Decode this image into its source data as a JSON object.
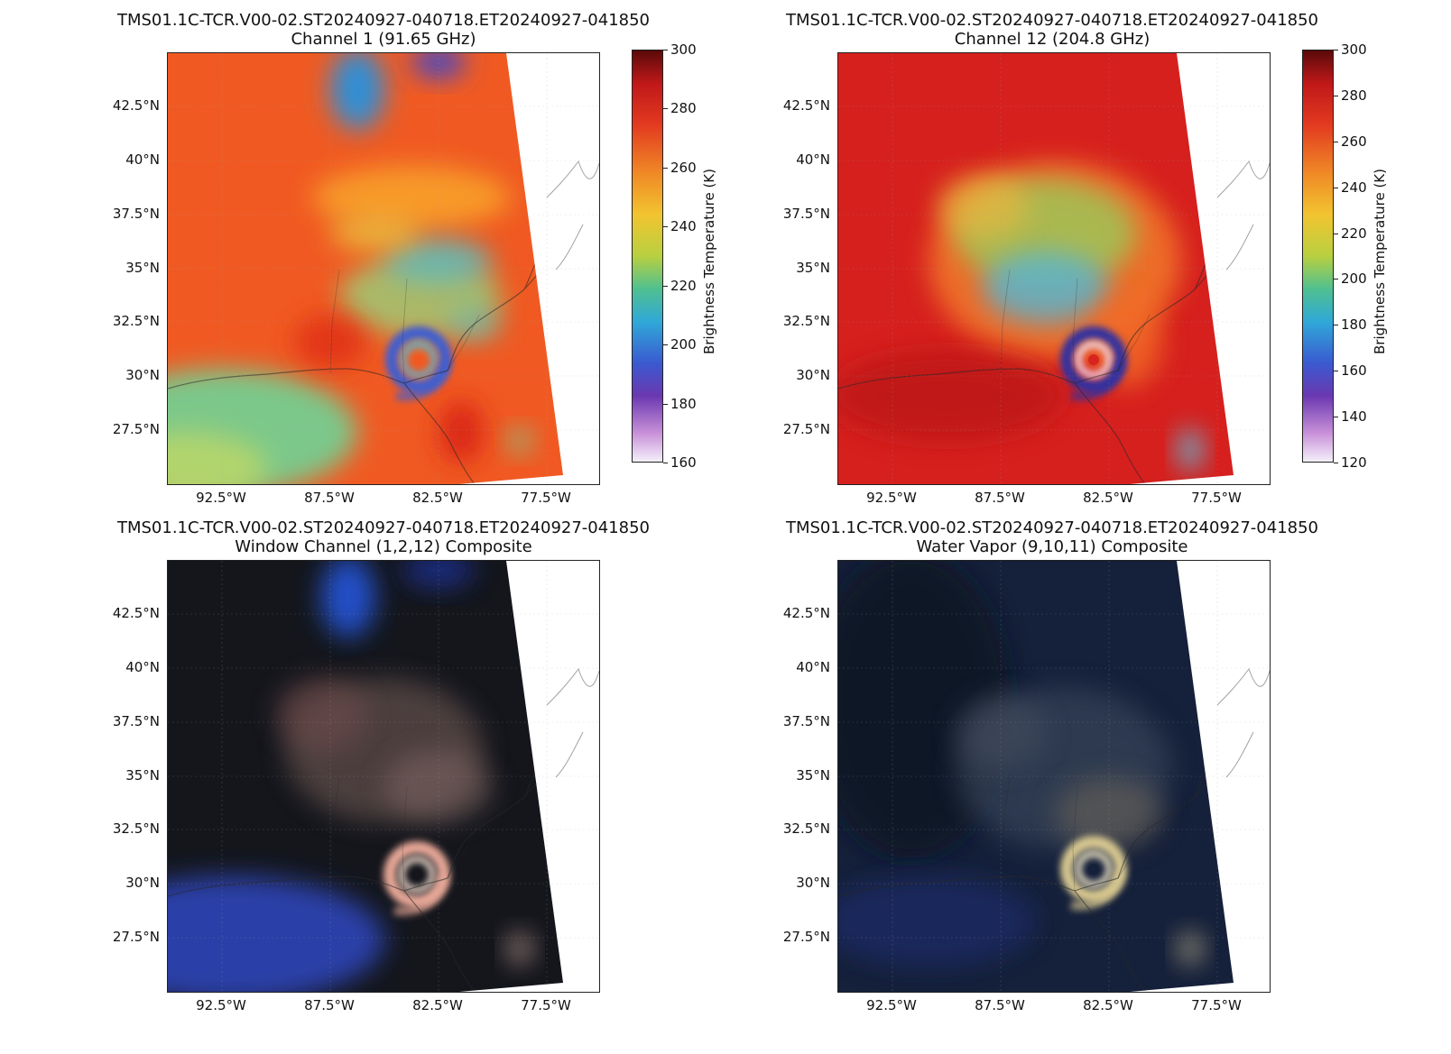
{
  "panels": [
    {
      "title": "TMS01.1C-TCR.V00-02.ST20240927-040718.ET20240927-041850",
      "subtitle": "Channel 1 (91.65 GHz)",
      "style": "ch1",
      "colorbar": {
        "label": "Brightness Temperature (K)",
        "ticks": [
          "300",
          "280",
          "260",
          "240",
          "220",
          "200",
          "180",
          "160"
        ]
      }
    },
    {
      "title": "TMS01.1C-TCR.V00-02.ST20240927-040718.ET20240927-041850",
      "subtitle": "Channel 12 (204.8 GHz)",
      "style": "ch12",
      "colorbar": {
        "label": "Brightness Temperature (K)",
        "ticks": [
          "300",
          "280",
          "260",
          "240",
          "220",
          "200",
          "180",
          "160",
          "140",
          "120"
        ]
      }
    },
    {
      "title": "TMS01.1C-TCR.V00-02.ST20240927-040718.ET20240927-041850",
      "subtitle": "Window Channel (1,2,12) Composite",
      "style": "window"
    },
    {
      "title": "TMS01.1C-TCR.V00-02.ST20240927-040718.ET20240927-041850",
      "subtitle": "Water Vapor (9,10,11) Composite",
      "style": "wv"
    }
  ],
  "lat_labels": [
    "42.5°N",
    "40°N",
    "37.5°N",
    "35°N",
    "32.5°N",
    "30°N",
    "27.5°N"
  ],
  "lon_labels": [
    "92.5°W",
    "87.5°W",
    "82.5°W",
    "77.5°W"
  ],
  "colors": {
    "ch1_base": "#f05a22",
    "ch12_base": "#d6201e",
    "window_base": "#14161c",
    "wv_base": "#15203a"
  }
}
